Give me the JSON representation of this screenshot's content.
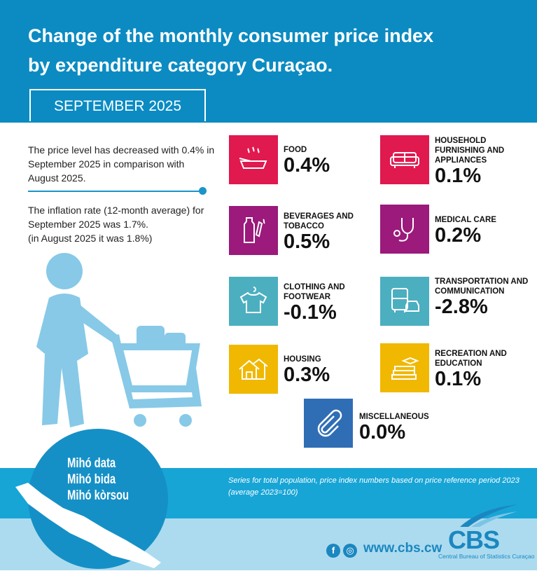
{
  "header": {
    "title_line1": "Change of the monthly consumer price index",
    "title_line2": "by expenditure category Curaçao.",
    "period": "SEPTEMBER 2025"
  },
  "summary": {
    "paragraph1": "The price level has decreased with 0.4% in September 2025 in comparison with August 2025.",
    "paragraph2_line1": "The inflation rate (12-month average) for September 2025 was 1.7%.",
    "paragraph2_line2": "(in August 2025 it was 1.8%)"
  },
  "colors": {
    "header": "#0b8bc2",
    "food": "#e0194f",
    "beverages": "#9b1a7b",
    "clothing": "#4bafc0",
    "housing": "#f0b800",
    "misc": "#2f6eb5"
  },
  "categories": [
    {
      "label": "FOOD",
      "value": "0.4%",
      "icon": "food-bowl-icon"
    },
    {
      "label": "HOUSEHOLD FURNISHING AND APPLIANCES",
      "value": "0.1%",
      "icon": "sofa-icon"
    },
    {
      "label": "BEVERAGES AND TOBACCO",
      "value": "0.5%",
      "icon": "bottle-cigarette-icon"
    },
    {
      "label": "MEDICAL CARE",
      "value": "0.2%",
      "icon": "stethoscope-icon"
    },
    {
      "label": "CLOTHING AND FOOTWEAR",
      "value": "-0.1%",
      "icon": "shirt-icon"
    },
    {
      "label": "TRANSPORTATION AND COMMUNICATION",
      "value": "-2.8%",
      "icon": "bus-car-icon"
    },
    {
      "label": "HOUSING",
      "value": "0.3%",
      "icon": "houses-icon"
    },
    {
      "label": "RECREATION AND EDUCATION",
      "value": "0.1%",
      "icon": "books-icon"
    },
    {
      "label": "MISCELLANEOUS",
      "value": "0.0%",
      "icon": "paperclip-icon"
    }
  ],
  "footer": {
    "note_line1": "Series for total population, price index numbers based on price reference period 2023",
    "note_line2": "(average 2023=100)",
    "slogan": [
      "Mihó data",
      "Mihó bida",
      "Mihó kòrsou"
    ],
    "url": "www.cbs.cw",
    "logo_text": "CBS",
    "logo_subtitle": "Central Bureau of Statistics Curaçao"
  }
}
